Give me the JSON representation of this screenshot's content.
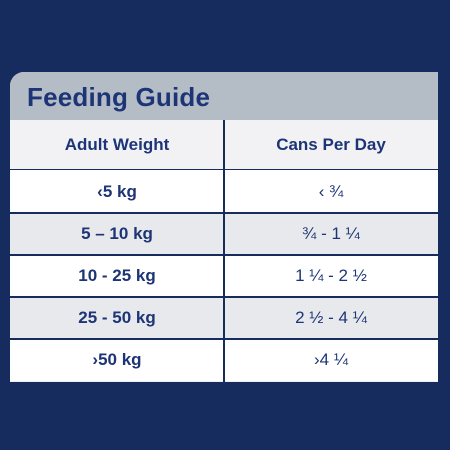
{
  "title": "Feeding Guide",
  "columns": {
    "weight": "Adult Weight",
    "cans": "Cans Per Day"
  },
  "rows": [
    {
      "weight": "‹5 kg",
      "cans": "‹ ¾"
    },
    {
      "weight": "5 – 10 kg",
      "cans": "¾ - 1 ¼"
    },
    {
      "weight": "10 - 25 kg",
      "cans": "1 ¼ - 2 ½"
    },
    {
      "weight": "25 - 50 kg",
      "cans": "2 ½ - 4 ¼"
    },
    {
      "weight": "›50 kg",
      "cans": "›4 ¼"
    }
  ],
  "colors": {
    "background": "#172c5e",
    "title_bar": "#b4bcc5",
    "text": "#1d3576"
  }
}
